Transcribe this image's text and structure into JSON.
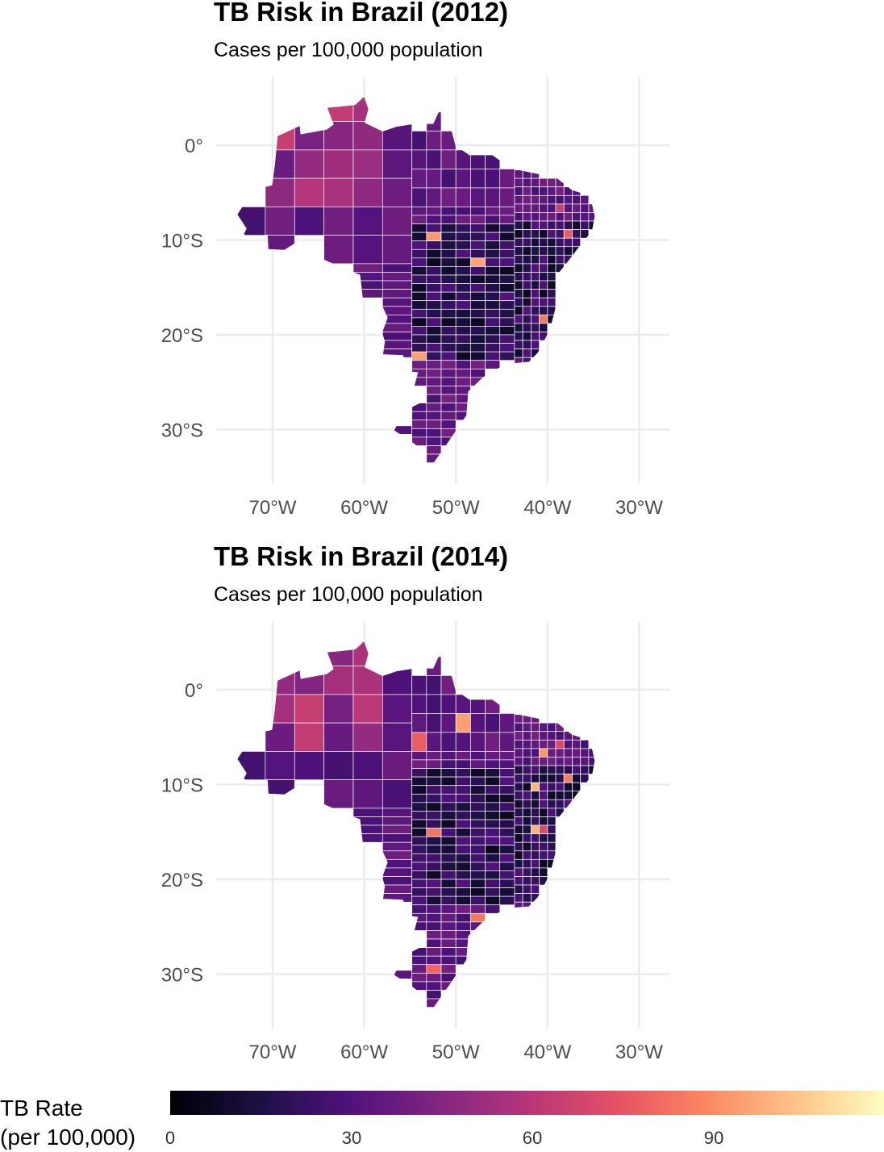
{
  "panels": [
    {
      "title": "TB Risk in Brazil (2012)",
      "subtitle": "Cases per 100,000 population",
      "x_axis_labels": [
        "70°W",
        "60°W",
        "50°W",
        "40°W",
        "30°W"
      ],
      "y_axis_labels": [
        "0°",
        "10°S",
        "20°S",
        "30°S"
      ]
    },
    {
      "title": "TB Risk in Brazil (2014)",
      "subtitle": "Cases per 100,000 population",
      "x_axis_labels": [
        "70°W",
        "60°W",
        "50°W",
        "40°W",
        "30°W"
      ],
      "y_axis_labels": [
        "0°",
        "10°S",
        "20°S",
        "30°S"
      ]
    }
  ],
  "legend": {
    "title_line1": "TB Rate",
    "title_line2": "(per 100,000)",
    "ticks": [
      "0",
      "30",
      "60",
      "90"
    ],
    "colors": [
      "#000004",
      "#1c1044",
      "#4f127b",
      "#812581",
      "#b5367a",
      "#e55064",
      "#fb8761",
      "#fec287",
      "#fcfdbf"
    ]
  },
  "chart_data": {
    "type": "choropleth",
    "region": "Brazil (municipalities)",
    "x_ticks": [
      "70°W",
      "60°W",
      "50°W",
      "40°W",
      "30°W"
    ],
    "y_ticks": [
      "0°",
      "10°S",
      "20°S",
      "30°S"
    ],
    "color_scale": "magma",
    "scale_range": [
      0,
      120
    ],
    "scale_ticks": [
      0,
      30,
      60,
      90
    ],
    "panels": [
      {
        "year": "2012",
        "dominant_fill": "#3b0f70"
      },
      {
        "year": "2014",
        "dominant_fill": "#3b0f70"
      }
    ]
  }
}
